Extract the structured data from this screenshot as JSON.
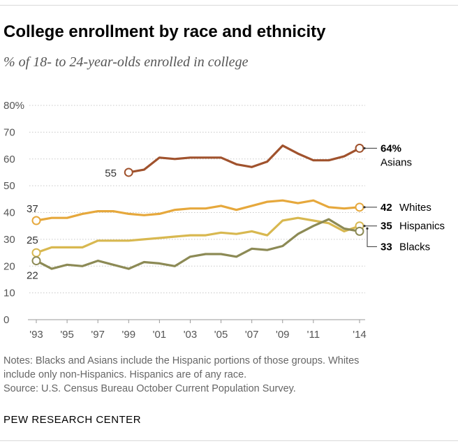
{
  "title": "College enrollment by race and ethnicity",
  "subtitle": "% of 18- to 24-year-olds enrolled in college",
  "notes": [
    "Notes: Blacks and Asians include the Hispanic portions of those groups. Whites",
    "include only non-Hispanics. Hispanics are of any race.",
    "Source: U.S. Census Bureau October Current Population Survey."
  ],
  "credit": "PEW RESEARCH CENTER",
  "chart_data": {
    "type": "line",
    "title": "College enrollment by race and ethnicity",
    "subtitle": "% of 18- to 24-year-olds enrolled in college",
    "xlabel": "",
    "ylabel": "",
    "xlim": [
      1993,
      2014
    ],
    "ylim": [
      0,
      80
    ],
    "y_ticks": [
      {
        "value": 0,
        "label": "0"
      },
      {
        "value": 10,
        "label": "10"
      },
      {
        "value": 20,
        "label": "20"
      },
      {
        "value": 30,
        "label": "30"
      },
      {
        "value": 40,
        "label": "40"
      },
      {
        "value": 50,
        "label": "50"
      },
      {
        "value": 60,
        "label": "60"
      },
      {
        "value": 70,
        "label": "70"
      },
      {
        "value": 80,
        "label": "80%"
      }
    ],
    "x_ticks": [
      {
        "value": 1993,
        "label": "'93"
      },
      {
        "value": 1995,
        "label": "'95"
      },
      {
        "value": 1997,
        "label": "'97"
      },
      {
        "value": 1999,
        "label": "'99"
      },
      {
        "value": 2001,
        "label": "'01"
      },
      {
        "value": 2003,
        "label": "'03"
      },
      {
        "value": 2005,
        "label": "'05"
      },
      {
        "value": 2007,
        "label": "'07"
      },
      {
        "value": 2009,
        "label": "'09"
      },
      {
        "value": 2011,
        "label": "'11"
      },
      {
        "value": 2014,
        "label": "'14"
      }
    ],
    "grid": true,
    "series": [
      {
        "name": "Asians",
        "color": "#a0522d",
        "x": [
          1999,
          2000,
          2001,
          2002,
          2003,
          2004,
          2005,
          2006,
          2007,
          2008,
          2009,
          2010,
          2011,
          2012,
          2013,
          2014
        ],
        "values": [
          55,
          56,
          60.5,
          60,
          60.5,
          60.5,
          60.5,
          58,
          57,
          59,
          65,
          62,
          59.5,
          59.5,
          61,
          64
        ],
        "start_label": "55",
        "end_label_value": "64%",
        "end_label_name": "Asians"
      },
      {
        "name": "Whites",
        "color": "#e6a83c",
        "x": [
          1993,
          1994,
          1995,
          1996,
          1997,
          1998,
          1999,
          2000,
          2001,
          2002,
          2003,
          2004,
          2005,
          2006,
          2007,
          2008,
          2009,
          2010,
          2011,
          2012,
          2013,
          2014
        ],
        "values": [
          37,
          38,
          38,
          39.5,
          40.5,
          40.5,
          39.5,
          39,
          39.5,
          41,
          41.5,
          41.5,
          42.5,
          41,
          42.5,
          44,
          44.5,
          43.5,
          44.5,
          42,
          41.5,
          42
        ],
        "start_label": "37",
        "end_label_value": "42",
        "end_label_name": "Whites"
      },
      {
        "name": "Hispanics",
        "color": "#d8b850",
        "x": [
          1993,
          1994,
          1995,
          1996,
          1997,
          1998,
          1999,
          2000,
          2001,
          2002,
          2003,
          2004,
          2005,
          2006,
          2007,
          2008,
          2009,
          2010,
          2011,
          2012,
          2013,
          2014
        ],
        "values": [
          25,
          27,
          27,
          27,
          29.5,
          29.5,
          29.5,
          30,
          30.5,
          31,
          31.5,
          31.5,
          32.5,
          32,
          33,
          31.5,
          37,
          38,
          37,
          36,
          33,
          35
        ],
        "start_label": "25",
        "end_label_value": "35",
        "end_label_name": "Hispanics"
      },
      {
        "name": "Blacks",
        "color": "#8c8a55",
        "x": [
          1993,
          1994,
          1995,
          1996,
          1997,
          1998,
          1999,
          2000,
          2001,
          2002,
          2003,
          2004,
          2005,
          2006,
          2007,
          2008,
          2009,
          2010,
          2011,
          2012,
          2013,
          2014
        ],
        "values": [
          22,
          19,
          20.5,
          20,
          22,
          20.5,
          19,
          21.5,
          21,
          20,
          23.5,
          24.5,
          24.5,
          23.5,
          26.5,
          26,
          27.5,
          32,
          35,
          37.5,
          34,
          33
        ],
        "start_label": "22",
        "end_label_value": "33",
        "end_label_name": "Blacks"
      }
    ]
  }
}
